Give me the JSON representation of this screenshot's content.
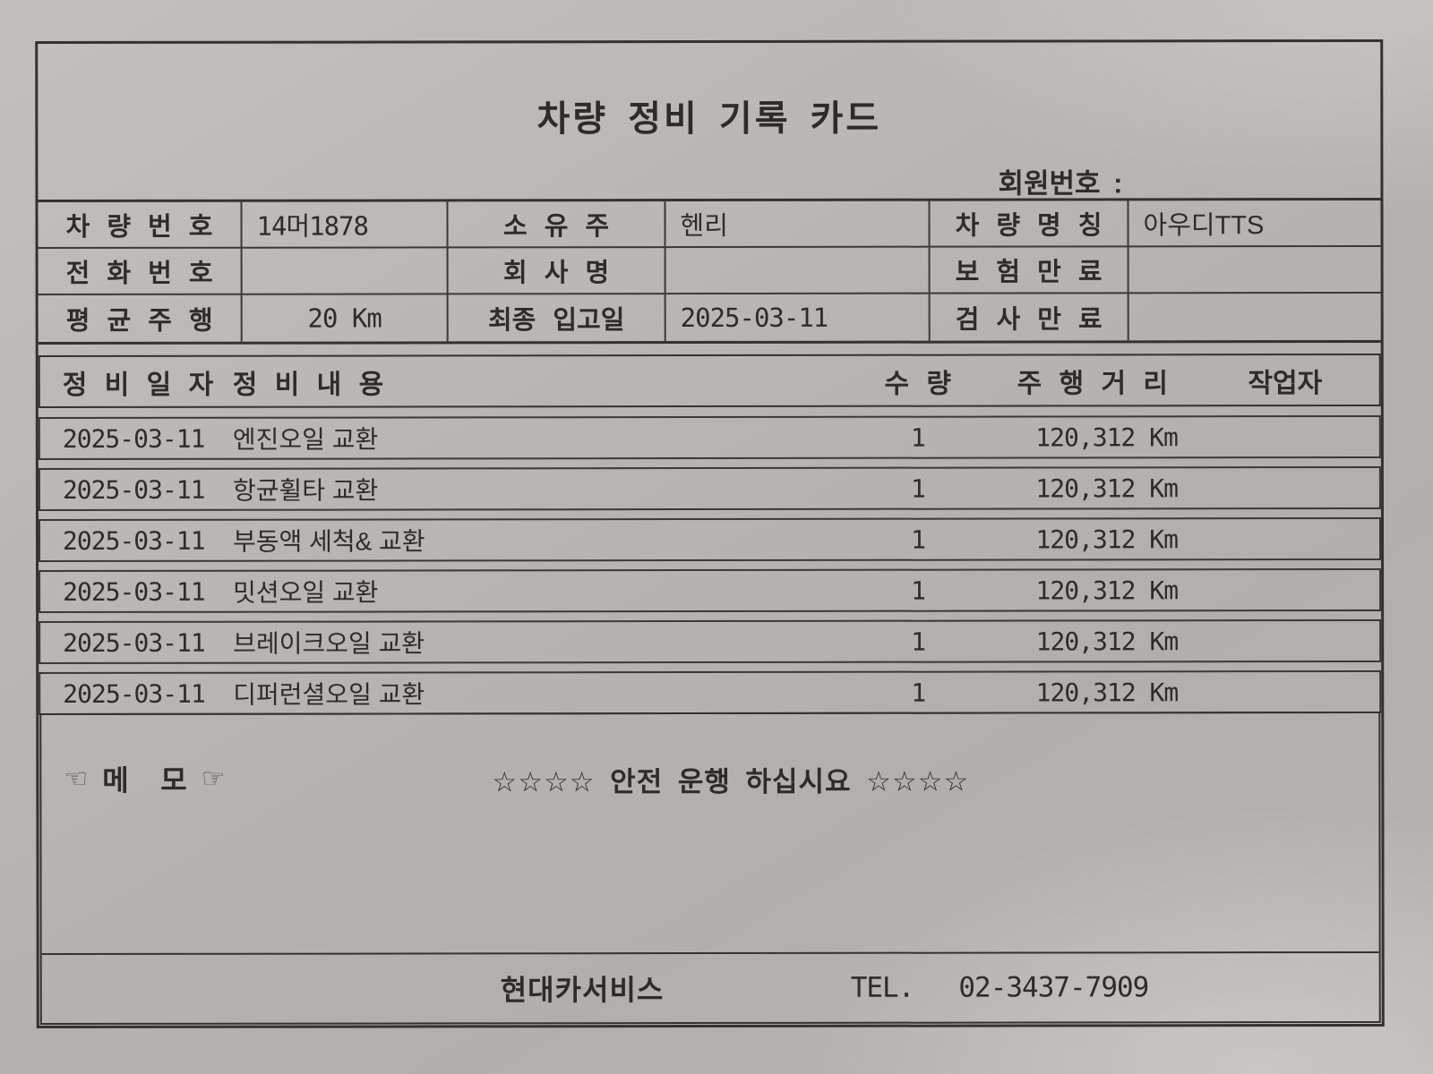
{
  "title": "차량 정비 기록 카드",
  "member_number": {
    "label": "회원번호 :"
  },
  "info_table": {
    "rows": [
      {
        "c1l": "차 량 번 호",
        "c1v": "14머1878",
        "c2l": "소 유 주",
        "c2v": "헨리",
        "c3l": "차 량 명 칭",
        "c3v": "아우디TTS"
      },
      {
        "c1l": "전 화 번 호",
        "c1v": "",
        "c2l": "회 사 명",
        "c2v": "",
        "c3l": "보 험 만 료",
        "c3v": ""
      },
      {
        "c1l": "평 균 주 행",
        "c1v": "20 Km",
        "c2l": "최종 입고일",
        "c2v": "2025-03-11",
        "c3l": "검 사 만 료",
        "c3v": ""
      }
    ]
  },
  "service_table": {
    "headers": {
      "date": "정 비 일 자",
      "content": "정 비 내 용",
      "qty": "수 량",
      "distance": "주 행 거 리",
      "worker": "작업자"
    },
    "rows": [
      {
        "date": "2025-03-11",
        "content": "엔진오일 교환",
        "qty": "1",
        "distance": "120,312 Km",
        "worker": ""
      },
      {
        "date": "2025-03-11",
        "content": "항균휠타 교환",
        "qty": "1",
        "distance": "120,312 Km",
        "worker": ""
      },
      {
        "date": "2025-03-11",
        "content": "부동액 세척& 교환",
        "qty": "1",
        "distance": "120,312 Km",
        "worker": ""
      },
      {
        "date": "2025-03-11",
        "content": "밋션오일 교환",
        "qty": "1",
        "distance": "120,312 Km",
        "worker": ""
      },
      {
        "date": "2025-03-11",
        "content": "브레이크오일 교환",
        "qty": "1",
        "distance": "120,312 Km",
        "worker": ""
      },
      {
        "date": "2025-03-11",
        "content": "디퍼런셜오일 교환",
        "qty": "1",
        "distance": "120,312 Km",
        "worker": ""
      }
    ]
  },
  "memo": {
    "left_icon": "☜",
    "label": "메    모",
    "right_icon": "☞",
    "text": "☆☆☆☆ 안전 운행 하십시요 ☆☆☆☆"
  },
  "footer": {
    "company": "현대카서비스",
    "tel_label": "TEL.",
    "tel_number": "02-3437-7909"
  },
  "colors": {
    "paper": "#b8b6b3",
    "ink": "#2e2c29",
    "line": "#34322e"
  }
}
